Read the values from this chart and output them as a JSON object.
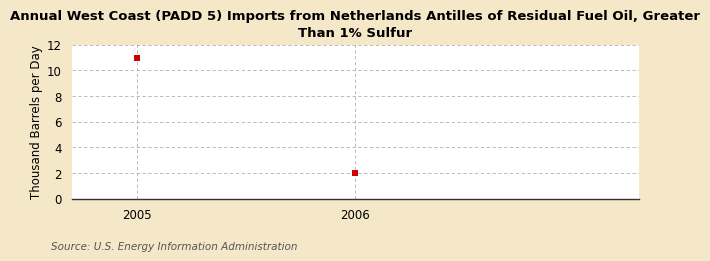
{
  "title": "Annual West Coast (PADD 5) Imports from Netherlands Antilles of Residual Fuel Oil, Greater\nThan 1% Sulfur",
  "ylabel": "Thousand Barrels per Day",
  "source": "Source: U.S. Energy Information Administration",
  "x": [
    2005,
    2006
  ],
  "y": [
    11,
    2
  ],
  "marker_color": "#cc0000",
  "marker_size": 4,
  "ylim": [
    0,
    12
  ],
  "yticks": [
    0,
    2,
    4,
    6,
    8,
    10,
    12
  ],
  "xlim": [
    2004.7,
    2007.3
  ],
  "xticks": [
    2005,
    2006
  ],
  "grid_color": "#b0b0b0",
  "bg_color": "#f5e8c8",
  "plot_bg": "#ffffff",
  "title_fontsize": 9.5,
  "ylabel_fontsize": 8.5,
  "tick_fontsize": 8.5,
  "source_fontsize": 7.5
}
